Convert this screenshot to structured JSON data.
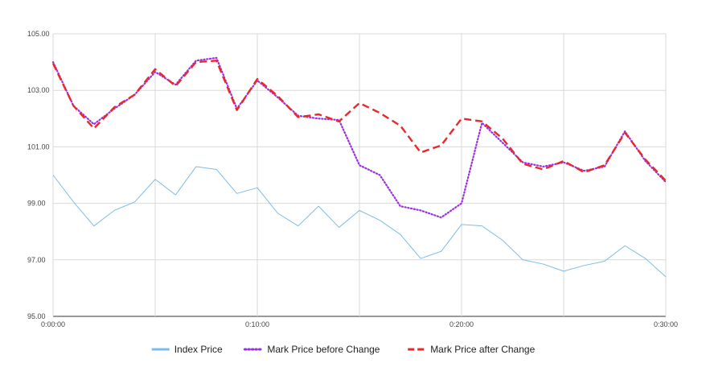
{
  "chart_data": {
    "type": "line",
    "title": "",
    "xlabel": "",
    "ylabel": "",
    "x": [
      "0:00:00",
      "0:01:00",
      "0:02:00",
      "0:03:00",
      "0:04:00",
      "0:05:00",
      "0:06:00",
      "0:07:00",
      "0:08:00",
      "0:09:00",
      "0:10:00",
      "0:11:00",
      "0:12:00",
      "0:13:00",
      "0:14:00",
      "0:15:00",
      "0:16:00",
      "0:17:00",
      "0:18:00",
      "0:19:00",
      "0:20:00",
      "0:21:00",
      "0:22:00",
      "0:23:00",
      "0:24:00",
      "0:25:00",
      "0:26:00",
      "0:27:00",
      "0:28:00",
      "0:29:00",
      "0:30:00"
    ],
    "x_tick_labels": [
      "0:00:00",
      "0:10:00",
      "0:20:00",
      "0:30:00"
    ],
    "y_tick_labels": [
      "95.00",
      "97.00",
      "99.00",
      "101.00",
      "103.00",
      "105.00"
    ],
    "ylim": [
      95,
      105
    ],
    "grid": true,
    "legend_position": "bottom",
    "series": [
      {
        "name": "Index Price",
        "color": "#7bbde8",
        "style": "solid",
        "values": [
          100.0,
          99.05,
          98.2,
          98.75,
          99.05,
          99.85,
          99.3,
          100.3,
          100.2,
          99.35,
          99.55,
          98.65,
          98.2,
          98.9,
          98.15,
          98.75,
          98.4,
          97.9,
          97.05,
          97.3,
          98.25,
          98.2,
          97.7,
          97.0,
          96.85,
          96.6,
          96.8,
          96.95,
          97.5,
          97.05,
          96.4
        ]
      },
      {
        "name": "Mark Price before Change",
        "color": "#9b30e0",
        "style": "dotted",
        "values": [
          104.0,
          102.45,
          101.8,
          102.35,
          102.85,
          103.65,
          103.2,
          104.05,
          104.15,
          102.35,
          103.35,
          102.75,
          102.1,
          102.0,
          101.95,
          100.35,
          100.0,
          98.9,
          98.75,
          98.5,
          99.0,
          101.85,
          101.15,
          100.45,
          100.3,
          100.45,
          100.15,
          100.3,
          101.55,
          100.5,
          99.75
        ]
      },
      {
        "name": "Mark Price after Change",
        "color": "#e8282b",
        "style": "dashed",
        "values": [
          103.95,
          102.45,
          101.65,
          102.4,
          102.85,
          103.75,
          103.15,
          104.0,
          104.05,
          102.3,
          103.4,
          102.8,
          102.05,
          102.15,
          101.9,
          102.55,
          102.2,
          101.75,
          100.8,
          101.05,
          102.0,
          101.9,
          101.3,
          100.4,
          100.2,
          100.5,
          100.1,
          100.35,
          101.5,
          100.55,
          99.8
        ]
      }
    ]
  }
}
